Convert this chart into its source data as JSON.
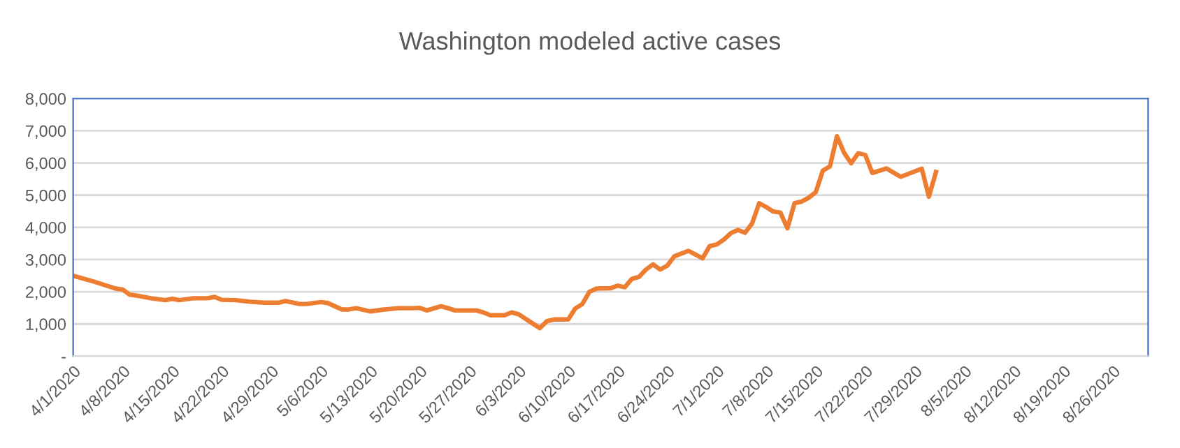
{
  "chart_data": {
    "type": "line",
    "title": "Washington modeled active cases",
    "x": [
      "2020-04-01",
      "2020-04-04",
      "2020-04-07",
      "2020-04-08",
      "2020-04-09",
      "2020-04-10",
      "2020-04-12",
      "2020-04-14",
      "2020-04-15",
      "2020-04-16",
      "2020-04-18",
      "2020-04-20",
      "2020-04-21",
      "2020-04-22",
      "2020-04-24",
      "2020-04-26",
      "2020-04-28",
      "2020-04-30",
      "2020-05-01",
      "2020-05-03",
      "2020-05-04",
      "2020-05-06",
      "2020-05-07",
      "2020-05-09",
      "2020-05-10",
      "2020-05-11",
      "2020-05-13",
      "2020-05-15",
      "2020-05-17",
      "2020-05-19",
      "2020-05-20",
      "2020-05-21",
      "2020-05-23",
      "2020-05-24",
      "2020-05-25",
      "2020-05-28",
      "2020-05-29",
      "2020-05-30",
      "2020-06-01",
      "2020-06-02",
      "2020-06-03",
      "2020-06-05",
      "2020-06-06",
      "2020-06-07",
      "2020-06-08",
      "2020-06-10",
      "2020-06-11",
      "2020-06-12",
      "2020-06-13",
      "2020-06-14",
      "2020-06-16",
      "2020-06-17",
      "2020-06-18",
      "2020-06-19",
      "2020-06-20",
      "2020-06-21",
      "2020-06-22",
      "2020-06-23",
      "2020-06-24",
      "2020-06-25",
      "2020-06-27",
      "2020-06-29",
      "2020-06-30",
      "2020-07-01",
      "2020-07-02",
      "2020-07-03",
      "2020-07-04",
      "2020-07-05",
      "2020-07-06",
      "2020-07-07",
      "2020-07-08",
      "2020-07-09",
      "2020-07-10",
      "2020-07-11",
      "2020-07-12",
      "2020-07-13",
      "2020-07-14",
      "2020-07-15",
      "2020-07-16",
      "2020-07-17",
      "2020-07-18",
      "2020-07-19",
      "2020-07-20",
      "2020-07-21",
      "2020-07-22",
      "2020-07-23",
      "2020-07-25",
      "2020-07-27",
      "2020-07-30",
      "2020-07-31",
      "2020-08-01"
    ],
    "series": [
      {
        "color": "#ed7d31",
        "values": [
          2500,
          2310,
          2100,
          2070,
          1910,
          1880,
          1800,
          1740,
          1780,
          1740,
          1800,
          1800,
          1840,
          1750,
          1740,
          1690,
          1660,
          1660,
          1710,
          1620,
          1620,
          1680,
          1650,
          1450,
          1450,
          1490,
          1390,
          1450,
          1490,
          1490,
          1500,
          1420,
          1550,
          1490,
          1420,
          1420,
          1360,
          1270,
          1270,
          1360,
          1300,
          1010,
          870,
          1090,
          1140,
          1140,
          1480,
          1620,
          2000,
          2100,
          2110,
          2190,
          2140,
          2400,
          2460,
          2690,
          2850,
          2690,
          2810,
          3100,
          3270,
          3040,
          3420,
          3470,
          3620,
          3820,
          3920,
          3830,
          4120,
          4750,
          4630,
          4490,
          4460,
          3970,
          4750,
          4800,
          4920,
          5090,
          5760,
          5890,
          6830,
          6320,
          5990,
          6300,
          6250,
          5690,
          5830,
          5570,
          5820,
          4950,
          5720
        ]
      }
    ],
    "xlim": [
      "2020-04-01",
      "2020-08-31"
    ],
    "xticks": [
      {
        "value": "2020-04-01",
        "label": "4/1/2020"
      },
      {
        "value": "2020-04-08",
        "label": "4/8/2020"
      },
      {
        "value": "2020-04-15",
        "label": "4/15/2020"
      },
      {
        "value": "2020-04-22",
        "label": "4/22/2020"
      },
      {
        "value": "2020-04-29",
        "label": "4/29/2020"
      },
      {
        "value": "2020-05-06",
        "label": "5/6/2020"
      },
      {
        "value": "2020-05-13",
        "label": "5/13/2020"
      },
      {
        "value": "2020-05-20",
        "label": "5/20/2020"
      },
      {
        "value": "2020-05-27",
        "label": "5/27/2020"
      },
      {
        "value": "2020-06-03",
        "label": "6/3/2020"
      },
      {
        "value": "2020-06-10",
        "label": "6/10/2020"
      },
      {
        "value": "2020-06-17",
        "label": "6/17/2020"
      },
      {
        "value": "2020-06-24",
        "label": "6/24/2020"
      },
      {
        "value": "2020-07-01",
        "label": "7/1/2020"
      },
      {
        "value": "2020-07-08",
        "label": "7/8/2020"
      },
      {
        "value": "2020-07-15",
        "label": "7/15/2020"
      },
      {
        "value": "2020-07-22",
        "label": "7/22/2020"
      },
      {
        "value": "2020-07-29",
        "label": "7/29/2020"
      },
      {
        "value": "2020-08-05",
        "label": "8/5/2020"
      },
      {
        "value": "2020-08-12",
        "label": "8/12/2020"
      },
      {
        "value": "2020-08-19",
        "label": "8/19/2020"
      },
      {
        "value": "2020-08-26",
        "label": "8/26/2020"
      }
    ],
    "ylim": [
      0,
      8000
    ],
    "yticks": [
      {
        "value": 0,
        "label": "-"
      },
      {
        "value": 1000,
        "label": "1,000"
      },
      {
        "value": 2000,
        "label": "2,000"
      },
      {
        "value": 3000,
        "label": "3,000"
      },
      {
        "value": 4000,
        "label": "4,000"
      },
      {
        "value": 5000,
        "label": "5,000"
      },
      {
        "value": 6000,
        "label": "6,000"
      },
      {
        "value": 7000,
        "label": "7,000"
      },
      {
        "value": 8000,
        "label": "8,000"
      }
    ],
    "grid": "y",
    "line_style": "solid"
  }
}
